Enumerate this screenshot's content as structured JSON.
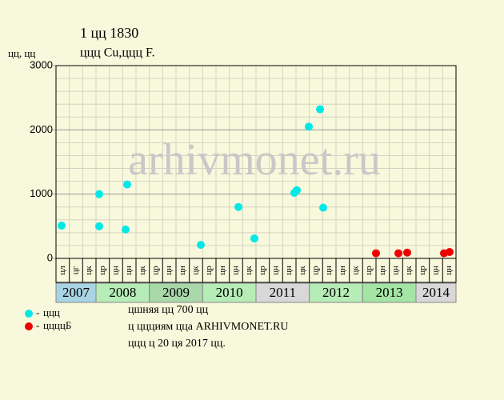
{
  "chart_data": {
    "type": "scatter",
    "title": "1 цц 1830",
    "subtitle": "ццц Cu,ццц F.",
    "y_label": "цц, цц",
    "watermark": "arhivmonet.ru",
    "columns": [
      "цл",
      "цг",
      "цк",
      "цр",
      "цн",
      "цн",
      "цк",
      "цр",
      "цн",
      "цн",
      "цк",
      "цр",
      "цн",
      "цн",
      "цк",
      "цр",
      "цн",
      "цн",
      "цк",
      "цр",
      "цн",
      "цн",
      "цк",
      "цр",
      "цн",
      "цн",
      "цк",
      "цр",
      "цн",
      "цн"
    ],
    "years": [
      {
        "label": "2007",
        "columns": 3,
        "color": "#a9d4e4"
      },
      {
        "label": "2008",
        "columns": 4,
        "color": "#b6ecb6"
      },
      {
        "label": "2009",
        "columns": 4,
        "color": "#a9d8a9"
      },
      {
        "label": "2010",
        "columns": 4,
        "color": "#b6ecb6"
      },
      {
        "label": "2011",
        "columns": 4,
        "color": "#d8d8d8"
      },
      {
        "label": "2012",
        "columns": 4,
        "color": "#b6ecb6"
      },
      {
        "label": "2013",
        "columns": 4,
        "color": "#a4e4a4"
      },
      {
        "label": "2014",
        "columns": 3,
        "color": "#d8d8d8"
      }
    ],
    "xlim": [
      0,
      30
    ],
    "ylim": [
      0,
      3000
    ],
    "yticks": [
      0,
      1000,
      2000,
      3000
    ],
    "minor_yticks": [
      200,
      400,
      600,
      800,
      1200,
      1400,
      1600,
      1800,
      2200,
      2400,
      2600,
      2800
    ],
    "series": [
      {
        "name": "ццц",
        "color": "#00e8e8",
        "x": [
          0.42,
          3.24,
          3.24,
          5.22,
          5.34,
          10.86,
          13.68,
          14.88,
          17.88,
          18.06,
          18.96,
          19.8,
          20.04
        ],
        "values": [
          510,
          500,
          1000,
          450,
          1150,
          210,
          800,
          310,
          1020,
          1060,
          2050,
          2320,
          790
        ]
      },
      {
        "name": "ццццБ",
        "color": "#ee0000",
        "x": [
          24.0,
          25.68,
          26.34,
          29.1,
          29.52
        ],
        "values": [
          80,
          80,
          90,
          80,
          100
        ]
      }
    ],
    "notes": [
      "цшняя цц 700 цц",
      "ц ццциям цца ARHIVMONET.RU",
      "ццц ц 20 ця 2017 цц."
    ]
  }
}
